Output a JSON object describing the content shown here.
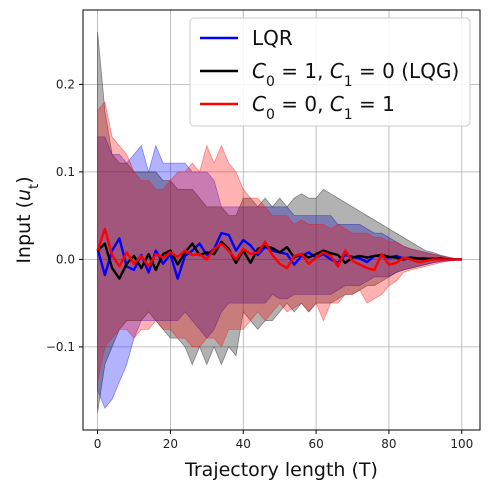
{
  "chart_data": {
    "type": "line",
    "xlabel": "Trajectory length (T)",
    "ylabel": "Input (u_t)",
    "ylabel_parts": [
      "Input (",
      "u",
      "t",
      ")"
    ],
    "xlim": [
      -4,
      105
    ],
    "ylim": [
      -0.195,
      0.285
    ],
    "xticks": [
      0,
      20,
      40,
      60,
      80,
      100
    ],
    "yticks": [
      -0.1,
      0.0,
      0.1,
      0.2
    ],
    "ytick_labels": [
      "−0.1",
      "0.0",
      "0.1",
      "0.2"
    ],
    "grid": true,
    "legend_position": "top-right",
    "series": [
      {
        "name": "LQR",
        "legend_parts": [
          "LQR"
        ],
        "color": "#0000ff",
        "fill_opacity": 0.3,
        "x": [
          0,
          2,
          4,
          6,
          8,
          10,
          12,
          14,
          16,
          18,
          20,
          22,
          24,
          26,
          28,
          30,
          32,
          34,
          36,
          38,
          40,
          42,
          44,
          46,
          48,
          50,
          52,
          54,
          56,
          58,
          60,
          62,
          64,
          66,
          68,
          70,
          72,
          74,
          76,
          78,
          80,
          82,
          84,
          86,
          88,
          90,
          92,
          94,
          96,
          98,
          100
        ],
        "mean": [
          0.012,
          -0.018,
          0.01,
          0.024,
          -0.008,
          -0.012,
          0.005,
          -0.015,
          0.01,
          -0.005,
          0.006,
          -0.022,
          0.004,
          0.01,
          0.018,
          0.005,
          0.012,
          0.03,
          0.028,
          0.01,
          0.022,
          0.016,
          0.005,
          0.014,
          0.01,
          0.008,
          0.006,
          -0.006,
          0.004,
          0.008,
          0.002,
          0.006,
          0.0,
          -0.004,
          0.005,
          0.003,
          0.001,
          -0.003,
          0.004,
          0.004,
          0.002,
          0.004,
          0.001,
          0.002,
          0.001,
          0.0,
          0.001,
          0.0,
          0.0,
          0.0,
          0.0
        ],
        "upper": [
          0.14,
          0.14,
          0.12,
          0.12,
          0.11,
          0.12,
          0.13,
          0.1,
          0.13,
          0.11,
          0.11,
          0.11,
          0.11,
          0.1,
          0.1,
          0.1,
          0.09,
          0.06,
          0.06,
          0.06,
          0.06,
          0.06,
          0.06,
          0.06,
          0.06,
          0.06,
          0.06,
          0.05,
          0.05,
          0.05,
          0.05,
          0.05,
          0.05,
          0.04,
          0.04,
          0.04,
          0.04,
          0.035,
          0.03,
          0.03,
          0.025,
          0.02,
          0.015,
          0.012,
          0.01,
          0.008,
          0.006,
          0.004,
          0.002,
          0.001,
          0.0
        ],
        "lower": [
          -0.15,
          -0.17,
          -0.16,
          -0.14,
          -0.12,
          -0.09,
          -0.07,
          -0.07,
          -0.07,
          -0.07,
          -0.07,
          -0.07,
          -0.06,
          -0.07,
          -0.08,
          -0.09,
          -0.08,
          -0.06,
          -0.05,
          -0.05,
          -0.05,
          -0.05,
          -0.05,
          -0.05,
          -0.04,
          -0.045,
          -0.045,
          -0.04,
          -0.04,
          -0.04,
          -0.04,
          -0.04,
          -0.04,
          -0.035,
          -0.03,
          -0.03,
          -0.03,
          -0.025,
          -0.02,
          -0.02,
          -0.02,
          -0.015,
          -0.012,
          -0.01,
          -0.008,
          -0.006,
          -0.004,
          -0.003,
          -0.002,
          -0.001,
          0.0
        ]
      },
      {
        "name": "C_0 = 1, C_1 = 0 (LQG)",
        "legend_parts": [
          "C",
          "0",
          " = 1, ",
          "C",
          "1",
          " = 0 (LQG)"
        ],
        "color": "#000000",
        "fill_opacity": 0.3,
        "x": [
          0,
          2,
          4,
          6,
          8,
          10,
          12,
          14,
          16,
          18,
          20,
          22,
          24,
          26,
          28,
          30,
          32,
          34,
          36,
          38,
          40,
          42,
          44,
          46,
          48,
          50,
          52,
          54,
          56,
          58,
          60,
          62,
          64,
          66,
          68,
          70,
          72,
          74,
          76,
          78,
          80,
          82,
          84,
          86,
          88,
          90,
          92,
          94,
          96,
          98,
          100
        ],
        "mean": [
          0.01,
          0.018,
          -0.01,
          -0.022,
          -0.005,
          0.004,
          -0.01,
          0.006,
          -0.012,
          0.006,
          0.01,
          -0.006,
          0.008,
          0.018,
          0.005,
          0.008,
          0.006,
          0.02,
          0.012,
          -0.004,
          0.01,
          -0.004,
          0.012,
          0.015,
          0.013,
          0.008,
          0.014,
          0.002,
          0.006,
          0.002,
          0.006,
          0.01,
          0.007,
          0.005,
          -0.004,
          0.002,
          0.004,
          0.002,
          0.004,
          0.005,
          0.003,
          0.002,
          0.0,
          0.002,
          0.001,
          0.001,
          0.0,
          0.001,
          0.0,
          0.0,
          0.0
        ],
        "upper": [
          0.26,
          0.17,
          0.12,
          0.11,
          0.11,
          0.1,
          0.1,
          0.1,
          0.1,
          0.09,
          0.09,
          0.08,
          0.08,
          0.08,
          0.07,
          0.06,
          0.06,
          0.06,
          0.05,
          0.05,
          0.07,
          0.07,
          0.06,
          0.07,
          0.06,
          0.07,
          0.06,
          0.07,
          0.075,
          0.07,
          0.07,
          0.08,
          0.075,
          0.07,
          0.065,
          0.06,
          0.055,
          0.05,
          0.045,
          0.04,
          0.035,
          0.03,
          0.025,
          0.02,
          0.015,
          0.01,
          0.008,
          0.005,
          0.003,
          0.001,
          0.0
        ],
        "lower": [
          -0.175,
          -0.12,
          -0.1,
          -0.08,
          -0.07,
          -0.07,
          -0.07,
          -0.06,
          -0.07,
          -0.08,
          -0.09,
          -0.09,
          -0.1,
          -0.12,
          -0.1,
          -0.12,
          -0.1,
          -0.12,
          -0.1,
          -0.11,
          -0.06,
          -0.07,
          -0.08,
          -0.07,
          -0.07,
          -0.06,
          -0.05,
          -0.06,
          -0.05,
          -0.06,
          -0.05,
          -0.05,
          -0.05,
          -0.045,
          -0.04,
          -0.04,
          -0.035,
          -0.03,
          -0.03,
          -0.025,
          -0.02,
          -0.015,
          -0.012,
          -0.01,
          -0.008,
          -0.006,
          -0.004,
          -0.002,
          -0.001,
          -0.001,
          0.0
        ]
      },
      {
        "name": "C_0 = 0, C_1 = 1",
        "legend_parts": [
          "C",
          "0",
          " = 0, ",
          "C",
          "1",
          " = 1"
        ],
        "color": "#ff0000",
        "fill_opacity": 0.3,
        "x": [
          0,
          2,
          4,
          6,
          8,
          10,
          12,
          14,
          16,
          18,
          20,
          22,
          24,
          26,
          28,
          30,
          32,
          34,
          36,
          38,
          40,
          42,
          44,
          46,
          48,
          50,
          52,
          54,
          56,
          58,
          60,
          62,
          64,
          66,
          68,
          70,
          72,
          74,
          76,
          78,
          80,
          82,
          84,
          86,
          88,
          90,
          92,
          94,
          96,
          98,
          100
        ],
        "mean": [
          0.01,
          0.035,
          0.005,
          -0.008,
          0.008,
          -0.005,
          0.004,
          -0.008,
          0.006,
          0.002,
          0.008,
          0.003,
          0.01,
          0.005,
          0.006,
          0.0,
          0.012,
          0.018,
          0.01,
          0.0,
          0.012,
          0.006,
          0.008,
          0.02,
          0.005,
          -0.005,
          -0.01,
          0.004,
          0.006,
          -0.005,
          0.002,
          0.008,
          0.004,
          -0.008,
          0.01,
          -0.002,
          -0.006,
          -0.01,
          -0.012,
          0.006,
          -0.006,
          -0.004,
          0.002,
          0.0,
          -0.003,
          -0.002,
          0.0,
          0.0,
          0.0,
          0.0,
          0.0
        ],
        "upper": [
          0.17,
          0.18,
          0.14,
          0.13,
          0.12,
          0.1,
          0.09,
          0.09,
          0.08,
          0.08,
          0.09,
          0.1,
          0.1,
          0.11,
          0.1,
          0.13,
          0.11,
          0.13,
          0.11,
          0.1,
          0.08,
          0.07,
          0.07,
          0.06,
          0.05,
          0.05,
          0.05,
          0.04,
          0.045,
          0.04,
          0.04,
          0.04,
          0.035,
          0.04,
          0.035,
          0.03,
          0.03,
          0.03,
          0.025,
          0.025,
          0.02,
          0.02,
          0.015,
          0.012,
          0.01,
          0.008,
          0.006,
          0.004,
          0.002,
          0.001,
          0.0
        ],
        "lower": [
          -0.14,
          -0.1,
          -0.09,
          -0.08,
          -0.08,
          -0.09,
          -0.08,
          -0.08,
          -0.07,
          -0.08,
          -0.08,
          -0.09,
          -0.09,
          -0.1,
          -0.1,
          -0.09,
          -0.09,
          -0.1,
          -0.08,
          -0.08,
          -0.08,
          -0.07,
          -0.06,
          -0.07,
          -0.06,
          -0.05,
          -0.06,
          -0.055,
          -0.05,
          -0.06,
          -0.05,
          -0.07,
          -0.05,
          -0.05,
          -0.04,
          -0.04,
          -0.035,
          -0.05,
          -0.045,
          -0.04,
          -0.03,
          -0.025,
          -0.015,
          -0.012,
          -0.01,
          -0.008,
          -0.006,
          -0.004,
          -0.002,
          -0.001,
          0.0
        ]
      }
    ]
  }
}
